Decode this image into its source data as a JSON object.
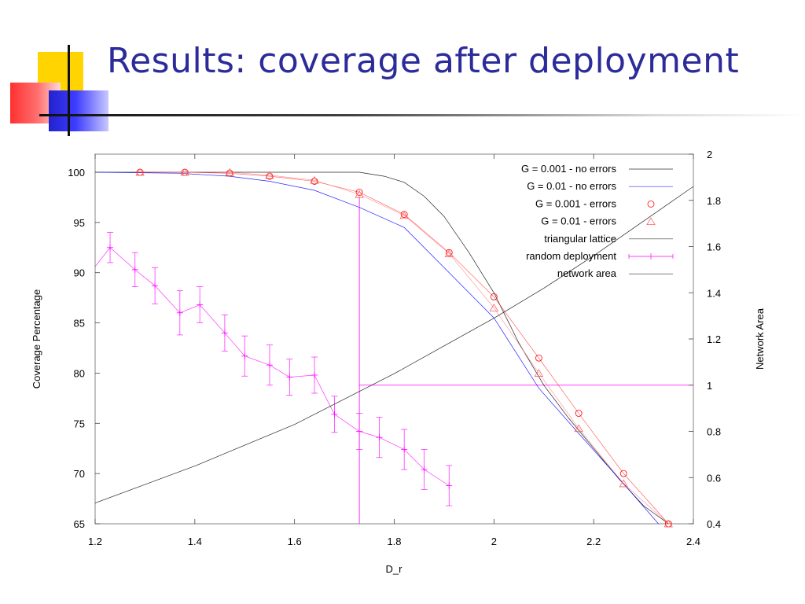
{
  "slide": {
    "title": "Results: coverage after deployment"
  },
  "colors": {
    "title": "#2b2b9a",
    "g001_no_errors": "#000000",
    "g01_no_errors": "#0000ff",
    "g001_errors": "#ff0000",
    "g01_errors": "#ff6060",
    "triangular_lattice": "#000000",
    "random_deployment": "#ff00ff",
    "network_area": "#000000",
    "marker_line": "#ff00ff"
  },
  "chart_data": {
    "type": "line",
    "title": "",
    "xlabel": "D_r",
    "ylabel": "Coverage Percentage",
    "y2label": "Network Area",
    "xlim": [
      1.2,
      2.4
    ],
    "ylim": [
      65,
      101.8
    ],
    "y2lim": [
      0.4,
      2
    ],
    "xticks": [
      "1.2",
      "1.4",
      "1.6",
      "1.8",
      "2",
      "2.2",
      "2.4"
    ],
    "yticks": [
      "65",
      "70",
      "75",
      "80",
      "85",
      "90",
      "95",
      "100"
    ],
    "y2ticks": [
      "0.4",
      "0.6",
      "0.8",
      "1",
      "1.2",
      "1.4",
      "1.6",
      "1.8",
      "2"
    ],
    "legend_position": "top-right",
    "reference_lines": {
      "x": 1.73,
      "y2": 1.0
    },
    "series": [
      {
        "name": "G = 0.001 - no errors",
        "style": "line",
        "color": "#000000",
        "x": [
          1.2,
          1.73,
          1.78,
          1.82,
          1.86,
          1.9,
          1.95,
          2.0,
          2.05,
          2.1,
          2.15,
          2.2,
          2.25,
          2.3,
          2.35
        ],
        "y": [
          100,
          100,
          99.6,
          99,
          97.6,
          95.6,
          92,
          88,
          83,
          78.8,
          75.5,
          72.5,
          69.5,
          66.8,
          64.5
        ]
      },
      {
        "name": "G = 0.01  - no errors",
        "style": "line",
        "color": "#0000ff",
        "x": [
          1.2,
          1.37,
          1.47,
          1.55,
          1.64,
          1.73,
          1.82,
          1.9,
          2.0,
          2.09,
          2.17,
          2.26,
          2.33
        ],
        "y": [
          100,
          99.9,
          99.6,
          99.1,
          98.2,
          96.5,
          94.5,
          90.5,
          85.5,
          78.5,
          74,
          69,
          64.5
        ]
      },
      {
        "name": "G = 0.001 - errors",
        "style": "circle",
        "color": "#ff0000",
        "x": [
          1.29,
          1.38,
          1.47,
          1.55,
          1.64,
          1.73,
          1.82,
          1.91,
          2.0,
          2.09,
          2.17,
          2.26,
          2.35
        ],
        "y": [
          100,
          100,
          99.9,
          99.6,
          99.1,
          98,
          95.8,
          92,
          87.6,
          81.5,
          76,
          70,
          65
        ]
      },
      {
        "name": "G = 0.01  - errors",
        "style": "triangle",
        "color": "#ff6060",
        "x": [
          1.29,
          1.38,
          1.47,
          1.55,
          1.64,
          1.73,
          1.82,
          1.91,
          2.0,
          2.09,
          2.17,
          2.26,
          2.35
        ],
        "y": [
          100,
          100,
          100,
          99.7,
          99.2,
          97.8,
          95.7,
          91.9,
          86.5,
          80,
          74.5,
          69,
          65
        ]
      },
      {
        "name": "triangular lattice",
        "style": "line",
        "color": "#000000",
        "x": [],
        "y": []
      },
      {
        "name": "random deployment",
        "style": "errorbar",
        "color": "#ff00ff",
        "x": [
          1.23,
          1.28,
          1.32,
          1.37,
          1.41,
          1.46,
          1.5,
          1.55,
          1.59,
          1.64,
          1.68,
          1.73,
          1.77,
          1.82,
          1.86,
          1.91
        ],
        "y": [
          92.5,
          90.3,
          88.7,
          86.0,
          86.8,
          84.0,
          81.7,
          80.8,
          79.6,
          79.8,
          75.9,
          74.2,
          73.6,
          72.4,
          70.4,
          68.8
        ],
        "err": [
          1.5,
          1.7,
          1.8,
          2.2,
          1.8,
          1.8,
          2.0,
          2.0,
          1.8,
          1.8,
          1.8,
          1.8,
          2.0,
          2.0,
          2.0,
          2.0
        ],
        "lead": {
          "x": 1.2,
          "y": 90.6
        }
      },
      {
        "name": "network area",
        "style": "line",
        "axis": "y2",
        "color": "#000000",
        "x": [
          1.2,
          1.3,
          1.4,
          1.5,
          1.6,
          1.7,
          1.8,
          1.9,
          2.0,
          2.1,
          2.2,
          2.3,
          2.4
        ],
        "y": [
          0.49,
          0.57,
          0.65,
          0.74,
          0.83,
          0.94,
          1.05,
          1.17,
          1.29,
          1.42,
          1.56,
          1.71,
          1.86
        ]
      }
    ]
  }
}
